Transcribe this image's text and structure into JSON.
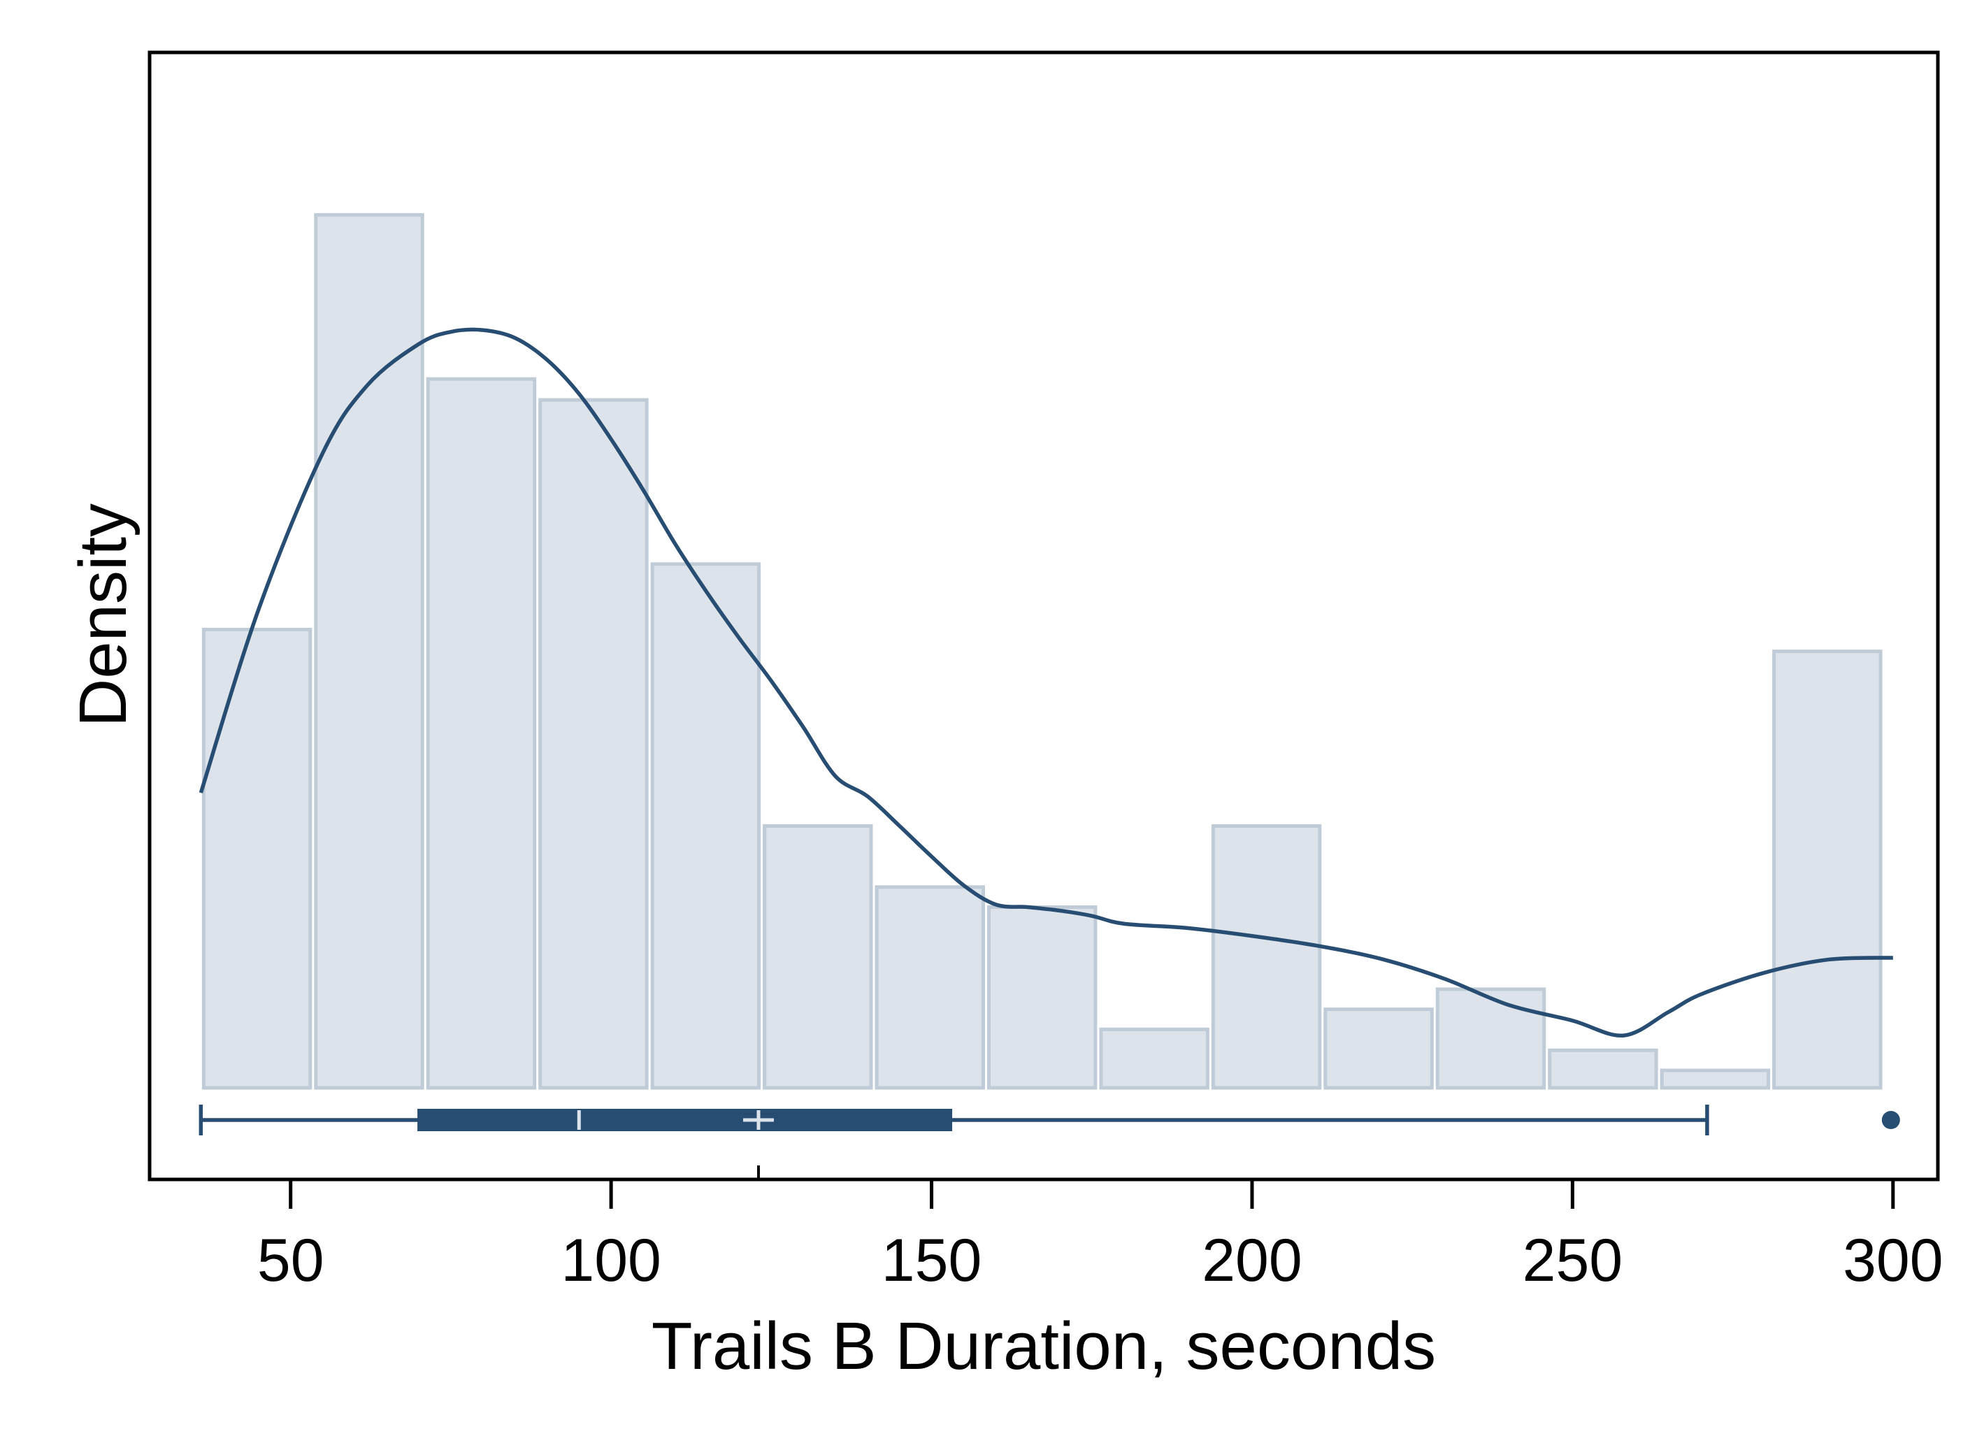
{
  "chart_data": {
    "type": "histogram",
    "title": "",
    "xlabel": "Trails B Duration, seconds",
    "ylabel": "Density",
    "xlim": [
      28,
      307
    ],
    "ylim": [
      0,
      0.01134
    ],
    "x_ticks": [
      50,
      100,
      150,
      200,
      250,
      300
    ],
    "x_tick_labels": [
      "50",
      "100",
      "150",
      "200",
      "250",
      "300"
    ],
    "y_ticks": [],
    "grid": false,
    "legend": "none",
    "colors": {
      "bar_fill": "#dce3ea",
      "bar_stroke": "#bfcbd6",
      "kde_line": "#284d73",
      "boxplot": "#284d73",
      "plot_background": "#ffffff",
      "frame": "#000000"
    },
    "histogram": {
      "bin_width": 17.5,
      "bins": [
        {
          "x_start": 36,
          "x_end": 53.5,
          "density": 0.00525
        },
        {
          "x_start": 53.5,
          "x_end": 71,
          "density": 0.01
        },
        {
          "x_start": 71,
          "x_end": 88.5,
          "density": 0.00812
        },
        {
          "x_start": 88.5,
          "x_end": 106,
          "density": 0.00788
        },
        {
          "x_start": 106,
          "x_end": 123.5,
          "density": 0.006
        },
        {
          "x_start": 123.5,
          "x_end": 141,
          "density": 0.003
        },
        {
          "x_start": 141,
          "x_end": 158.5,
          "density": 0.0023
        },
        {
          "x_start": 158.5,
          "x_end": 176,
          "density": 0.00207
        },
        {
          "x_start": 176,
          "x_end": 193.5,
          "density": 0.00067
        },
        {
          "x_start": 193.5,
          "x_end": 211,
          "density": 0.003
        },
        {
          "x_start": 211,
          "x_end": 228.5,
          "density": 0.0009
        },
        {
          "x_start": 228.5,
          "x_end": 246,
          "density": 0.00113
        },
        {
          "x_start": 246,
          "x_end": 263.5,
          "density": 0.00043
        },
        {
          "x_start": 263.5,
          "x_end": 281,
          "density": 0.0002
        },
        {
          "x_start": 281,
          "x_end": 298.5,
          "density": 0.005
        }
      ]
    },
    "kde": {
      "x": [
        36,
        45,
        55,
        62,
        70,
        75,
        80,
        85,
        90,
        95,
        100,
        105,
        110,
        115,
        120,
        125,
        130,
        135,
        140,
        145,
        150,
        155,
        160,
        165,
        170,
        175,
        180,
        190,
        200,
        210,
        220,
        230,
        240,
        250,
        258,
        265,
        270,
        280,
        290,
        300
      ],
      "density": [
        0.00338,
        0.00548,
        0.00727,
        0.00805,
        0.00852,
        0.00866,
        0.00868,
        0.00859,
        0.00834,
        0.00795,
        0.00743,
        0.00685,
        0.00623,
        0.00567,
        0.00515,
        0.00466,
        0.00413,
        0.00357,
        0.00334,
        0.003,
        0.00265,
        0.00232,
        0.0021,
        0.00207,
        0.00203,
        0.00197,
        0.00188,
        0.00183,
        0.00174,
        0.00163,
        0.00148,
        0.00125,
        0.00095,
        0.00077,
        0.0006,
        0.00087,
        0.00107,
        0.00132,
        0.00147,
        0.00149
      ]
    },
    "boxplot": {
      "whisker_low": 36,
      "q1": 70,
      "median": 95,
      "mean": 123,
      "q3": 153,
      "whisker_high": 271,
      "outliers": [
        300
      ]
    }
  }
}
